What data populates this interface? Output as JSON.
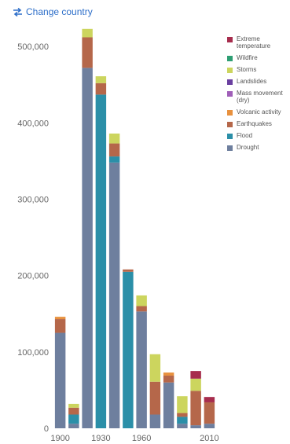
{
  "header": {
    "change_country_label": "Change country",
    "change_country_icon": "swap-arrows-icon",
    "accent_color": "#2e6fc9"
  },
  "chart_data": {
    "type": "bar",
    "stacked": true,
    "categories": [
      "1900",
      "1910",
      "1920",
      "1930",
      "1940",
      "1950",
      "1960",
      "1970",
      "1980",
      "1990",
      "2000",
      "2010"
    ],
    "x_tick_labels": [
      "1900",
      "1930",
      "1960",
      "2010"
    ],
    "y_tick_labels": [
      "0",
      "100,000",
      "200,000",
      "300,000",
      "400,000",
      "500,000"
    ],
    "ylim": [
      0,
      530000
    ],
    "grid": false,
    "legend_position": "right",
    "series": [
      {
        "name": "Drought",
        "color": "#6e7f9e",
        "values": [
          125000,
          6000,
          472000,
          0,
          348000,
          0,
          153000,
          18000,
          60000,
          6000,
          4000,
          6000
        ]
      },
      {
        "name": "Flood",
        "color": "#2b8fa8",
        "values": [
          0,
          12000,
          0,
          437000,
          8000,
          205000,
          0,
          0,
          0,
          9000,
          0,
          0
        ]
      },
      {
        "name": "Earthquakes",
        "color": "#b5674a",
        "values": [
          18000,
          9000,
          40000,
          15000,
          17000,
          3000,
          7000,
          43000,
          9000,
          5000,
          45000,
          28000
        ]
      },
      {
        "name": "Volcanic activity",
        "color": "#e8913e",
        "values": [
          3000,
          0,
          0,
          0,
          0,
          0,
          0,
          0,
          4000,
          0,
          0,
          0
        ]
      },
      {
        "name": "Mass movement (dry)",
        "color": "#a05fb8",
        "values": [
          0,
          0,
          0,
          0,
          0,
          0,
          0,
          0,
          0,
          0,
          0,
          0
        ]
      },
      {
        "name": "Landslides",
        "color": "#6a3fa0",
        "values": [
          0,
          0,
          0,
          0,
          0,
          0,
          0,
          0,
          0,
          0,
          0,
          0
        ]
      },
      {
        "name": "Storms",
        "color": "#ccd55e",
        "values": [
          0,
          5000,
          11000,
          9000,
          13000,
          0,
          14000,
          36000,
          0,
          22000,
          16000,
          0
        ]
      },
      {
        "name": "Wildfire",
        "color": "#2e9e73",
        "values": [
          0,
          0,
          0,
          0,
          0,
          0,
          0,
          0,
          0,
          0,
          0,
          0
        ]
      },
      {
        "name": "Extreme temperature",
        "color": "#a72d4d",
        "values": [
          0,
          0,
          0,
          0,
          0,
          0,
          0,
          0,
          0,
          0,
          10000,
          7000
        ]
      }
    ],
    "legend": [
      {
        "name": "Extreme temperature",
        "color": "#a72d4d"
      },
      {
        "name": "Wildfire",
        "color": "#2e9e73"
      },
      {
        "name": "Storms",
        "color": "#ccd55e"
      },
      {
        "name": "Landslides",
        "color": "#6a3fa0"
      },
      {
        "name": "Mass movement (dry)",
        "color": "#a05fb8"
      },
      {
        "name": "Volcanic activity",
        "color": "#e8913e"
      },
      {
        "name": "Earthquakes",
        "color": "#b5674a"
      },
      {
        "name": "Flood",
        "color": "#2b8fa8"
      },
      {
        "name": "Drought",
        "color": "#6e7f9e"
      }
    ]
  }
}
